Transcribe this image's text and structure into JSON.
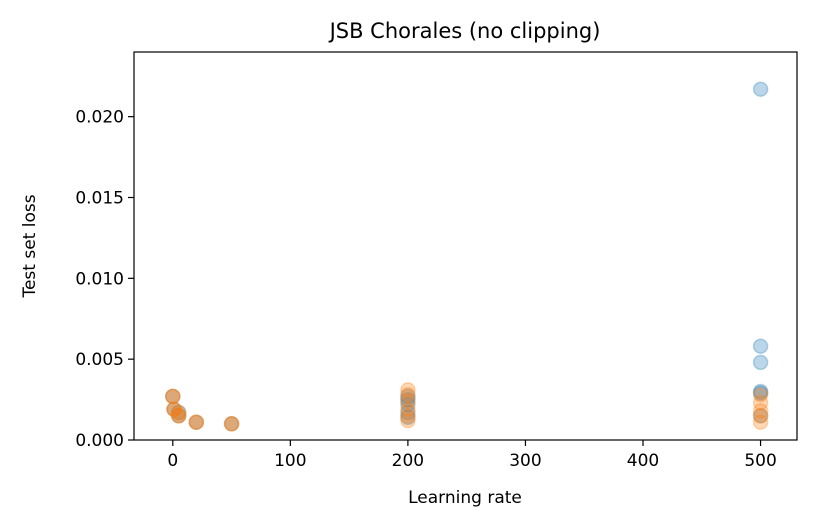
{
  "chart_data": {
    "type": "scatter",
    "title": "JSB Chorales (no clipping)",
    "xlabel": "Learning rate",
    "ylabel": "Test set loss",
    "xlim": [
      -33,
      531
    ],
    "ylim": [
      0.0,
      0.024
    ],
    "xticks": [
      0,
      100,
      200,
      300,
      400,
      500
    ],
    "xtick_labels": [
      "0",
      "100",
      "200",
      "300",
      "400",
      "500"
    ],
    "yticks": [
      0.0,
      0.005,
      0.01,
      0.015,
      0.02
    ],
    "ytick_labels": [
      "0.000",
      "0.005",
      "0.010",
      "0.015",
      "0.020"
    ],
    "grid": false,
    "legend": false,
    "series": [
      {
        "color": "#1f77b4",
        "alpha": 0.3,
        "points": [
          {
            "x": 0,
            "y": 0.0027
          },
          {
            "x": 1,
            "y": 0.0019
          },
          {
            "x": 5,
            "y": 0.0017
          },
          {
            "x": 5,
            "y": 0.0015
          },
          {
            "x": 20,
            "y": 0.0011
          },
          {
            "x": 50,
            "y": 0.001
          },
          {
            "x": 200,
            "y": 0.0027
          },
          {
            "x": 200,
            "y": 0.0025
          },
          {
            "x": 200,
            "y": 0.0022
          },
          {
            "x": 200,
            "y": 0.0017
          },
          {
            "x": 200,
            "y": 0.0014
          },
          {
            "x": 500,
            "y": 0.0217
          },
          {
            "x": 500,
            "y": 0.0058
          },
          {
            "x": 500,
            "y": 0.0048
          },
          {
            "x": 500,
            "y": 0.003
          },
          {
            "x": 500,
            "y": 0.0029
          },
          {
            "x": 500,
            "y": 0.0015
          }
        ]
      },
      {
        "color": "#ff7f0e",
        "alpha": 0.3,
        "points": [
          {
            "x": 0,
            "y": 0.0027
          },
          {
            "x": 0,
            "y": 0.0027
          },
          {
            "x": 1,
            "y": 0.0019
          },
          {
            "x": 1,
            "y": 0.0019
          },
          {
            "x": 5,
            "y": 0.0017
          },
          {
            "x": 5,
            "y": 0.0015
          },
          {
            "x": 5,
            "y": 0.0015
          },
          {
            "x": 20,
            "y": 0.0011
          },
          {
            "x": 20,
            "y": 0.0011
          },
          {
            "x": 50,
            "y": 0.001
          },
          {
            "x": 50,
            "y": 0.001
          },
          {
            "x": 200,
            "y": 0.0031
          },
          {
            "x": 200,
            "y": 0.0028
          },
          {
            "x": 200,
            "y": 0.0024
          },
          {
            "x": 200,
            "y": 0.0019
          },
          {
            "x": 200,
            "y": 0.0015
          },
          {
            "x": 200,
            "y": 0.0012
          },
          {
            "x": 500,
            "y": 0.0028
          },
          {
            "x": 500,
            "y": 0.0023
          },
          {
            "x": 500,
            "y": 0.0018
          },
          {
            "x": 500,
            "y": 0.0015
          },
          {
            "x": 500,
            "y": 0.0011
          }
        ]
      }
    ]
  }
}
